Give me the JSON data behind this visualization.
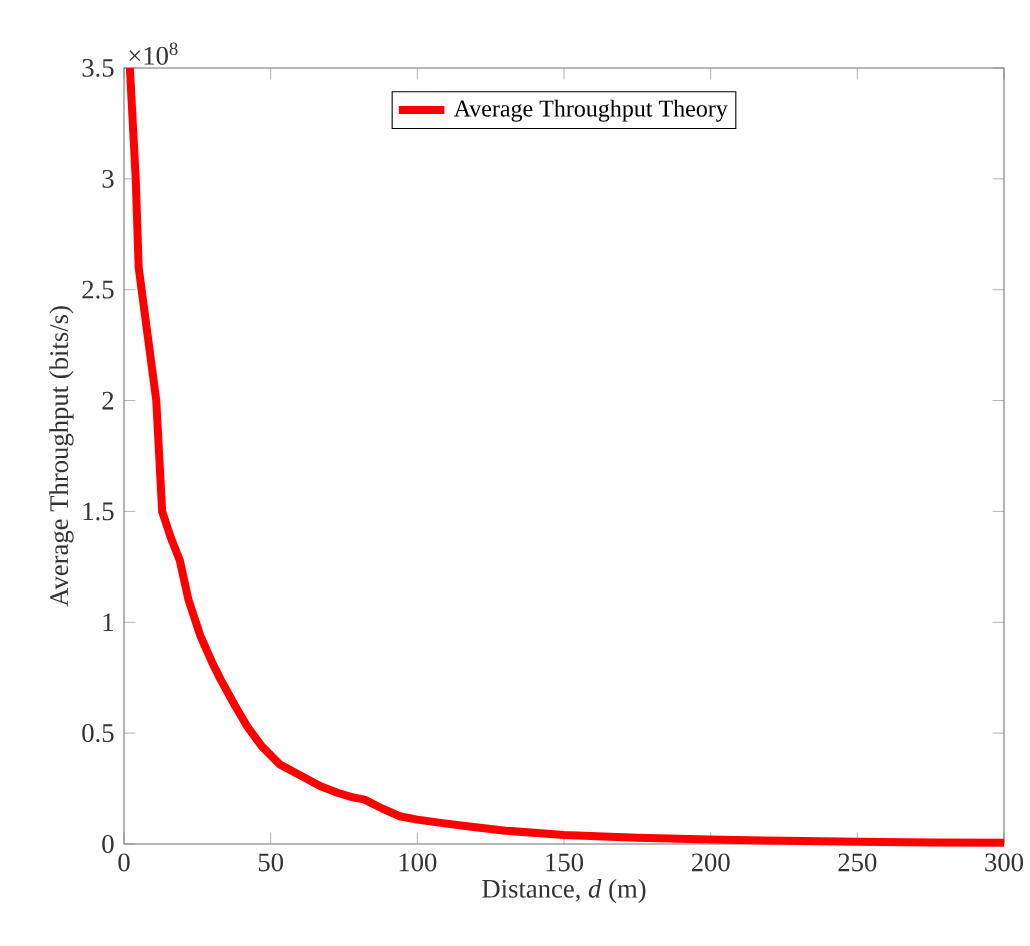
{
  "chart_data": {
    "type": "line",
    "xlabel": "Distance,  *d* (m)",
    "ylabel": "Average Throughput (bits/s)",
    "annotations": [
      "×10$^{8}$"
    ],
    "x": [
      2,
      4,
      5,
      8,
      11,
      13,
      16,
      19,
      22,
      26,
      30,
      33,
      38,
      42,
      47,
      53,
      60,
      67,
      73,
      78,
      82,
      88,
      94,
      100,
      108,
      117,
      130,
      150,
      175,
      200,
      225,
      250,
      275,
      300
    ],
    "series": [
      {
        "name": "Average Throughput Theory",
        "color": "#ff0000",
        "values": [
          3.5,
          3.0,
          2.6,
          2.3,
          2.0,
          1.5,
          1.38,
          1.28,
          1.1,
          0.94,
          0.82,
          0.74,
          0.62,
          0.53,
          0.44,
          0.36,
          0.31,
          0.26,
          0.23,
          0.21,
          0.2,
          0.16,
          0.125,
          0.11,
          0.095,
          0.08,
          0.06,
          0.04,
          0.028,
          0.02,
          0.014,
          0.01,
          0.007,
          0.005
        ]
      }
    ],
    "xlim": [
      0,
      300
    ],
    "ylim": [
      0,
      3.5
    ],
    "xticks": [
      0,
      50,
      100,
      150,
      200,
      250,
      300
    ],
    "yticks": [
      0,
      0.5,
      1,
      1.5,
      2,
      2.5,
      3,
      3.5
    ],
    "grid": false,
    "legend": "top",
    "marker": "none",
    "line_style": "solid"
  }
}
